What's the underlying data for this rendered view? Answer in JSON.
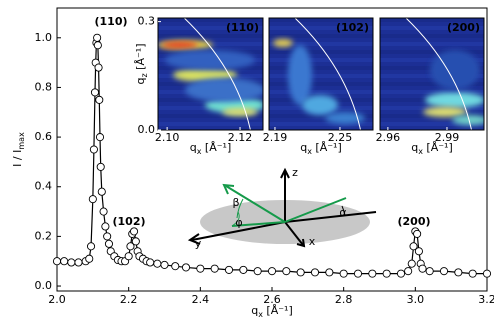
{
  "chart_data": {
    "type": "line",
    "xlabel": "q",
    "xlabel_sub": "x",
    "xlabel_unit": " [Å⁻¹]",
    "ylabel": "I / I",
    "ylabel_sub": "max",
    "xlim": [
      2.0,
      3.2
    ],
    "ylim": [
      -0.02,
      1.12
    ],
    "xticks": [
      {
        "value": 2.0,
        "label": "2.0"
      },
      {
        "value": 2.2,
        "label": "2.2"
      },
      {
        "value": 2.4,
        "label": "2.4"
      },
      {
        "value": 2.6,
        "label": "2.6"
      },
      {
        "value": 2.8,
        "label": "2.8"
      },
      {
        "value": 3.0,
        "label": "3.0"
      },
      {
        "value": 3.2,
        "label": "3.2"
      }
    ],
    "yticks": [
      {
        "value": 0,
        "label": "0.0"
      },
      {
        "value": 0.2,
        "label": "0.2"
      },
      {
        "value": 0.4,
        "label": "0.4"
      },
      {
        "value": 0.6,
        "label": "0.6"
      },
      {
        "value": 0.8,
        "label": "0.8"
      },
      {
        "value": 1.0,
        "label": "1.0"
      }
    ],
    "grid": false,
    "series": [
      {
        "color": "#000000",
        "x": [
          2.0,
          2.02,
          2.04,
          2.06,
          2.08,
          2.09,
          2.095,
          2.1,
          2.103,
          2.106,
          2.108,
          2.11,
          2.112,
          2.114,
          2.116,
          2.118,
          2.12,
          2.122,
          2.125,
          2.13,
          2.135,
          2.14,
          2.145,
          2.15,
          2.16,
          2.17,
          2.18,
          2.19,
          2.2,
          2.205,
          2.21,
          2.215,
          2.22,
          2.225,
          2.23,
          2.24,
          2.25,
          2.26,
          2.28,
          2.3,
          2.33,
          2.36,
          2.4,
          2.44,
          2.48,
          2.52,
          2.56,
          2.6,
          2.64,
          2.68,
          2.72,
          2.76,
          2.8,
          2.84,
          2.88,
          2.92,
          2.96,
          2.98,
          2.99,
          2.995,
          3.0,
          3.005,
          3.01,
          3.015,
          3.02,
          3.04,
          3.08,
          3.12,
          3.16,
          3.2
        ],
        "values": [
          0.1,
          0.1,
          0.095,
          0.095,
          0.1,
          0.11,
          0.16,
          0.35,
          0.55,
          0.78,
          0.9,
          0.98,
          1.0,
          0.97,
          0.88,
          0.75,
          0.6,
          0.48,
          0.38,
          0.3,
          0.24,
          0.2,
          0.17,
          0.14,
          0.12,
          0.105,
          0.1,
          0.1,
          0.12,
          0.16,
          0.21,
          0.22,
          0.18,
          0.14,
          0.12,
          0.11,
          0.1,
          0.095,
          0.09,
          0.085,
          0.08,
          0.075,
          0.07,
          0.07,
          0.065,
          0.065,
          0.06,
          0.06,
          0.06,
          0.055,
          0.055,
          0.055,
          0.05,
          0.05,
          0.05,
          0.05,
          0.05,
          0.06,
          0.09,
          0.16,
          0.22,
          0.21,
          0.14,
          0.09,
          0.07,
          0.06,
          0.06,
          0.055,
          0.05,
          0.05
        ]
      }
    ],
    "annotations": [
      "(110)",
      "(102)",
      "(200)"
    ],
    "insets": [
      {
        "label": "(110)",
        "xlim": [
          2.0975,
          2.1263
        ],
        "ylim": [
          0,
          0.31
        ],
        "xticks": [
          {
            "value": 2.1,
            "label": "2.10"
          },
          {
            "value": 2.12,
            "label": "2.12"
          }
        ],
        "yticks": [
          {
            "value": 0,
            "label": "0.0"
          },
          {
            "value": 0.3,
            "label": "0.3"
          }
        ],
        "xlabel": "q",
        "xlabel_sub": "x",
        "xlabel_unit": " [Å⁻¹]",
        "ylabel": "q",
        "ylabel_sub": "z",
        "ylabel_unit": " [Å⁻¹]"
      },
      {
        "label": "(102)",
        "xlim": [
          2.1845,
          2.2805
        ],
        "xticks": [
          {
            "value": 2.19,
            "label": "2.19"
          },
          {
            "value": 2.25,
            "label": "2.25"
          }
        ],
        "xlabel": "q",
        "xlabel_sub": "x",
        "xlabel_unit": " [Å⁻¹]"
      },
      {
        "label": "(200)",
        "xlim": [
          2.956,
          3.0088
        ],
        "xticks": [
          {
            "value": 2.96,
            "label": "2.96"
          },
          {
            "value": 2.99,
            "label": "2.99"
          }
        ],
        "xlabel": "q",
        "xlabel_sub": "x",
        "xlabel_unit": " [Å⁻¹]"
      }
    ],
    "diagram": {
      "labels": [
        "z",
        "y",
        "x",
        "α",
        "β",
        "φ"
      ]
    }
  }
}
